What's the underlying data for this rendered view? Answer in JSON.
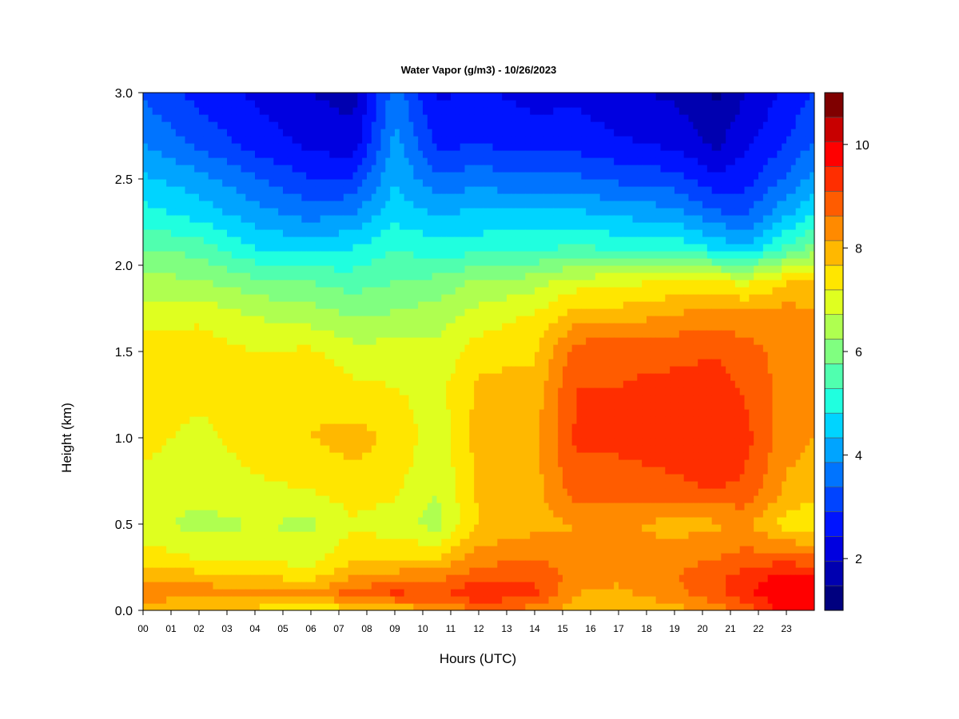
{
  "chart_data": {
    "type": "heatmap",
    "title": "Water Vapor (g/m3) - 10/26/2023",
    "xlabel": "Hours (UTC)",
    "ylabel": "Height (km)",
    "xlim": [
      0,
      24
    ],
    "ylim": [
      0.0,
      3.0
    ],
    "x_ticks": [
      0,
      1,
      2,
      3,
      4,
      5,
      6,
      7,
      8,
      9,
      10,
      11,
      12,
      13,
      14,
      15,
      16,
      17,
      18,
      19,
      20,
      21,
      22,
      23
    ],
    "x_tick_labels": [
      "00",
      "01",
      "02",
      "03",
      "04",
      "05",
      "06",
      "07",
      "08",
      "09",
      "10",
      "11",
      "12",
      "13",
      "14",
      "15",
      "16",
      "17",
      "18",
      "19",
      "20",
      "21",
      "22",
      "23"
    ],
    "y_ticks": [
      0.0,
      0.5,
      1.0,
      1.5,
      2.0,
      2.5,
      3.0
    ],
    "y_tick_labels": [
      "0.0",
      "0.5",
      "1.0",
      "1.5",
      "2.0",
      "2.5",
      "3.0"
    ],
    "colorbar": {
      "range": [
        1,
        11
      ],
      "levels": [
        1,
        1.5,
        2,
        2.5,
        3,
        3.5,
        4,
        4.5,
        5,
        5.5,
        6,
        6.5,
        7,
        7.5,
        8,
        8.5,
        9,
        9.5,
        10,
        10.5,
        11
      ],
      "colors": [
        "#00007f",
        "#0000b0",
        "#0000e0",
        "#0014ff",
        "#0044ff",
        "#0074ff",
        "#00a4ff",
        "#00d4ff",
        "#20ffdf",
        "#50ffaf",
        "#80ff80",
        "#afff50",
        "#dfff20",
        "#ffe600",
        "#ffb800",
        "#ff8a00",
        "#ff5c00",
        "#ff2e00",
        "#ff0000",
        "#c80000",
        "#7f0000"
      ],
      "tick_values": [
        2,
        4,
        6,
        8,
        10
      ],
      "tick_labels": [
        "2",
        "4",
        "6",
        "8",
        "10"
      ]
    },
    "heights_km": [
      0.0,
      0.1,
      0.2,
      0.3,
      0.5,
      0.7,
      1.0,
      1.3,
      1.5,
      1.7,
      1.9,
      2.1,
      2.3,
      2.5,
      2.7,
      3.0
    ],
    "hours": [
      0,
      2,
      4,
      6,
      7.5,
      9,
      10.5,
      12,
      14,
      15.5,
      17,
      19,
      20.5,
      21.5,
      23,
      24
    ],
    "values": [
      [
        7.8,
        7.8,
        7.8,
        7.6,
        7.8,
        8.0,
        8.5,
        9.0,
        8.8,
        8.2,
        8.0,
        8.3,
        8.8,
        9.0,
        10.3,
        10.5
      ],
      [
        9.0,
        8.8,
        8.8,
        8.6,
        9.2,
        9.6,
        9.3,
        10.0,
        9.6,
        8.5,
        8.4,
        8.8,
        9.3,
        9.9,
        10.5,
        10.5
      ],
      [
        8.2,
        8.2,
        8.0,
        7.8,
        8.5,
        8.7,
        8.8,
        9.3,
        9.4,
        8.8,
        8.6,
        9.0,
        9.4,
        9.7,
        10.2,
        10.0
      ],
      [
        7.8,
        7.5,
        7.4,
        7.3,
        7.9,
        8.0,
        8.0,
        8.8,
        9.0,
        8.7,
        8.6,
        8.8,
        9.0,
        9.2,
        9.3,
        9.1
      ],
      [
        7.2,
        6.8,
        7.0,
        6.9,
        7.4,
        7.2,
        6.8,
        8.0,
        8.3,
        8.5,
        8.6,
        8.3,
        8.4,
        8.6,
        7.8,
        7.6
      ],
      [
        7.4,
        7.2,
        7.4,
        7.5,
        7.8,
        7.6,
        7.0,
        8.1,
        8.3,
        9.3,
        9.3,
        9.4,
        9.5,
        9.4,
        8.4,
        8.2
      ],
      [
        7.6,
        7.4,
        7.7,
        8.0,
        8.2,
        7.9,
        7.2,
        8.2,
        8.4,
        9.6,
        9.6,
        9.7,
        10.0,
        9.7,
        8.7,
        8.5
      ],
      [
        7.7,
        7.6,
        7.6,
        7.9,
        7.6,
        7.5,
        7.3,
        8.1,
        8.2,
        9.5,
        9.5,
        9.6,
        9.8,
        9.4,
        8.8,
        8.6
      ],
      [
        7.8,
        7.8,
        7.5,
        7.6,
        7.2,
        7.2,
        7.1,
        7.8,
        7.9,
        9.3,
        9.4,
        9.4,
        9.4,
        9.2,
        8.8,
        8.6
      ],
      [
        7.3,
        7.4,
        7.0,
        6.8,
        6.5,
        6.6,
        6.8,
        7.2,
        7.6,
        8.3,
        8.3,
        8.6,
        8.8,
        8.7,
        8.8,
        8.6
      ],
      [
        6.7,
        6.6,
        6.2,
        6.0,
        5.8,
        6.0,
        6.2,
        6.6,
        6.8,
        7.3,
        7.4,
        7.6,
        7.6,
        7.4,
        8.0,
        8.2
      ],
      [
        6.0,
        5.8,
        5.0,
        4.8,
        5.0,
        5.5,
        5.2,
        5.3,
        5.4,
        5.6,
        5.4,
        5.4,
        4.9,
        4.6,
        5.6,
        6.2
      ],
      [
        5.2,
        4.8,
        4.2,
        3.8,
        4.0,
        4.8,
        4.5,
        4.6,
        4.6,
        4.6,
        4.4,
        4.2,
        3.6,
        3.4,
        4.4,
        5.0
      ],
      [
        4.6,
        4.2,
        3.6,
        3.0,
        3.0,
        4.5,
        3.6,
        3.8,
        3.6,
        3.6,
        3.4,
        3.2,
        2.6,
        2.8,
        3.6,
        4.2
      ],
      [
        4.0,
        3.4,
        2.8,
        2.4,
        2.2,
        4.2,
        2.9,
        3.0,
        2.8,
        2.8,
        2.6,
        2.4,
        1.9,
        2.4,
        3.0,
        3.6
      ],
      [
        3.4,
        2.8,
        2.4,
        2.0,
        1.8,
        3.8,
        2.4,
        2.6,
        2.3,
        2.4,
        2.1,
        1.9,
        1.4,
        2.0,
        2.6,
        3.0
      ]
    ]
  }
}
